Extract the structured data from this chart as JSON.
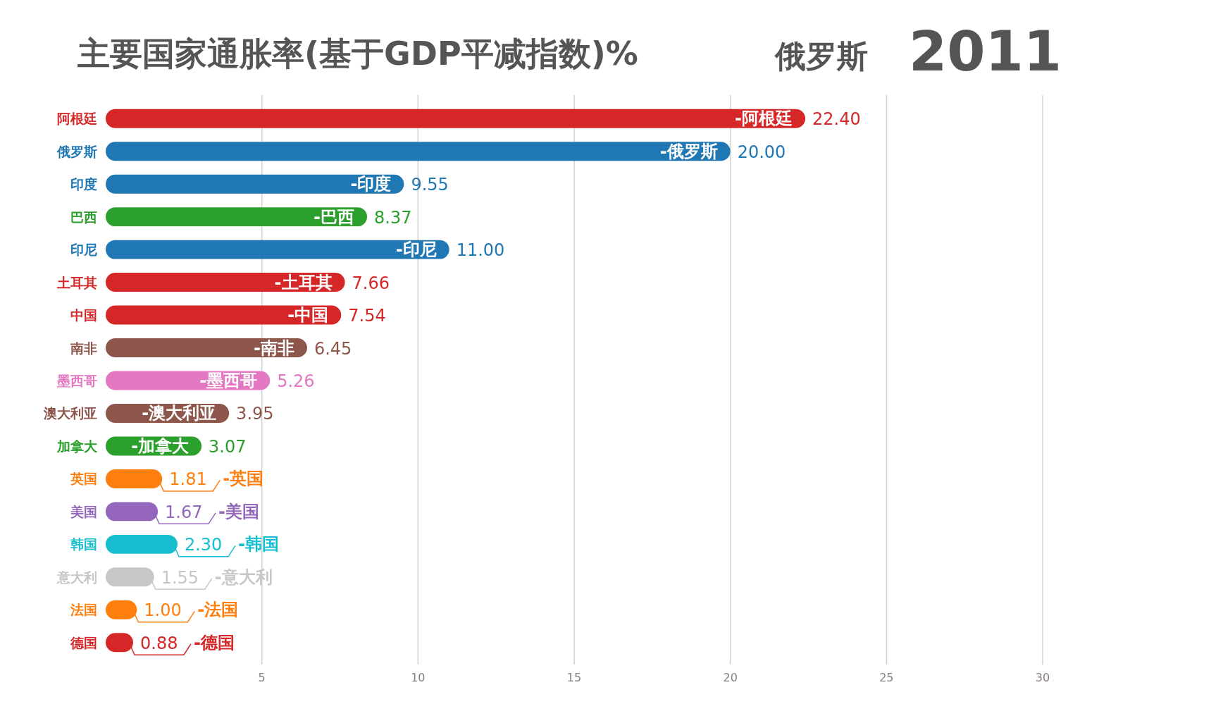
{
  "chart_data": {
    "type": "bar",
    "orientation": "horizontal",
    "title": "主要国家通胀率(基于GDP平减指数)%",
    "annotations": [
      "俄罗斯",
      "2011",
      {
        "text": "-阿根廷",
        "x": 22.4,
        "y": "阿根廷"
      },
      {
        "text": "-俄罗斯",
        "x": 20.0,
        "y": "俄罗斯"
      },
      {
        "text": "-印度",
        "x": 9.55,
        "y": "印度"
      },
      {
        "text": "-巴西",
        "x": 8.37,
        "y": "巴西"
      },
      {
        "text": "-印尼",
        "x": 11.0,
        "y": "印尼"
      },
      {
        "text": "-土耳其",
        "x": 7.66,
        "y": "土耳其"
      },
      {
        "text": "-中国",
        "x": 7.54,
        "y": "中国"
      },
      {
        "text": "-南非",
        "x": 6.45,
        "y": "南非"
      },
      {
        "text": "-墨西哥",
        "x": 5.26,
        "y": "墨西哥"
      },
      {
        "text": "-澳大利亚",
        "x": 3.95,
        "y": "澳大利亚"
      },
      {
        "text": "-加拿大",
        "x": 3.07,
        "y": "加拿大"
      },
      {
        "text": "-英国",
        "x": 1.81,
        "y": "英国"
      },
      {
        "text": "-美国",
        "x": 1.67,
        "y": "美国"
      },
      {
        "text": "-韩国",
        "x": 2.3,
        "y": "韩国"
      },
      {
        "text": "-意大利",
        "x": 1.55,
        "y": "意大利"
      },
      {
        "text": "-法国",
        "x": 1.0,
        "y": "法国"
      },
      {
        "text": "-德国",
        "x": 0.88,
        "y": "德国"
      }
    ],
    "categories": [
      "阿根廷",
      "俄罗斯",
      "印度",
      "巴西",
      "印尼",
      "土耳其",
      "中国",
      "南非",
      "墨西哥",
      "澳大利亚",
      "加拿大",
      "英国",
      "美国",
      "韩国",
      "意大利",
      "法国",
      "德国"
    ],
    "values": [
      22.4,
      20.0,
      9.55,
      8.37,
      11.0,
      7.66,
      7.54,
      6.45,
      5.26,
      3.95,
      3.07,
      1.81,
      1.67,
      2.3,
      1.55,
      1.0,
      0.88
    ],
    "value_labels": [
      "22.40",
      "20.00",
      "9.55",
      "8.37",
      "11.00",
      "7.66",
      "7.54",
      "6.45",
      "5.26",
      "3.95",
      "3.07",
      "1.81",
      "1.67",
      "2.30",
      "1.55",
      "1.00",
      "0.88"
    ],
    "colors": [
      "#d62728",
      "#1f77b4",
      "#1f77b4",
      "#2ca02c",
      "#1f77b4",
      "#d62728",
      "#d62728",
      "#8c564b",
      "#e377c2",
      "#8c564b",
      "#2ca02c",
      "#ff7f0e",
      "#9467bd",
      "#17becf",
      "#c7c7c7",
      "#ff7f0e",
      "#d62728"
    ],
    "xlim": [
      0,
      30
    ],
    "xticks": [
      5,
      10,
      15,
      20,
      25,
      30
    ],
    "grid": "x"
  }
}
